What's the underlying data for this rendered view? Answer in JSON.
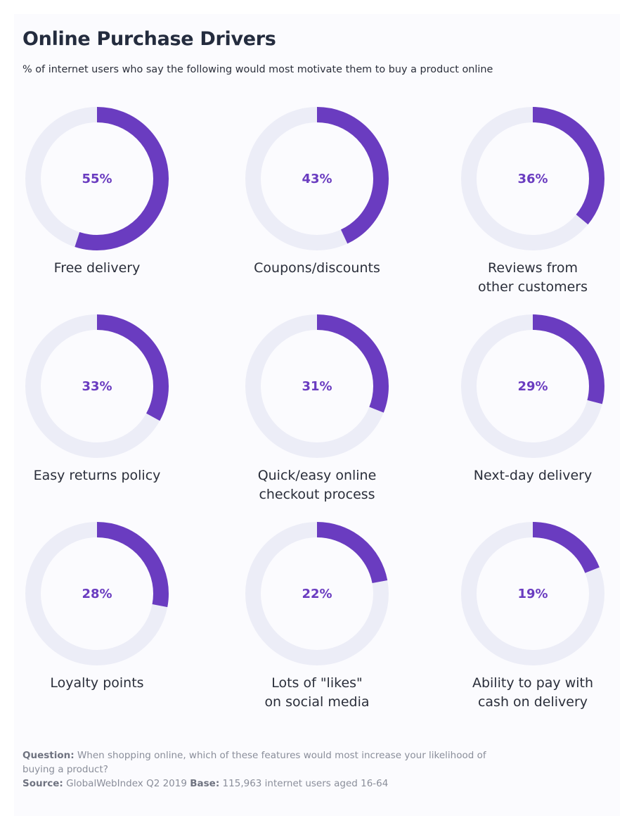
{
  "header": {
    "title": "Online Purchase Drivers",
    "subtitle": "% of internet users who say the following would most motivate them to buy a product online"
  },
  "colors": {
    "accent": "#6a3cc0",
    "track": "#ecedf7",
    "title": "#242c3e",
    "footer_text": "#8a8e9a"
  },
  "chart_data": {
    "type": "pie",
    "title": "Online Purchase Drivers",
    "subtitle": "% of internet users who say the following would most motivate them to buy a product online",
    "unit": "%",
    "items": [
      {
        "label_lines": [
          "Free delivery"
        ],
        "value": 55,
        "value_label": "55%"
      },
      {
        "label_lines": [
          "Coupons/discounts"
        ],
        "value": 43,
        "value_label": "43%"
      },
      {
        "label_lines": [
          "Reviews from",
          "other customers"
        ],
        "value": 36,
        "value_label": "36%"
      },
      {
        "label_lines": [
          "Easy returns policy"
        ],
        "value": 33,
        "value_label": "33%"
      },
      {
        "label_lines": [
          "Quick/easy online",
          "checkout process"
        ],
        "value": 31,
        "value_label": "31%"
      },
      {
        "label_lines": [
          "Next-day delivery"
        ],
        "value": 29,
        "value_label": "29%"
      },
      {
        "label_lines": [
          "Loyalty points"
        ],
        "value": 28,
        "value_label": "28%"
      },
      {
        "label_lines": [
          "Lots of \"likes\"",
          "on social media"
        ],
        "value": 22,
        "value_label": "22%"
      },
      {
        "label_lines": [
          "Ability to pay with",
          "cash on delivery"
        ],
        "value": 19,
        "value_label": "19%"
      }
    ]
  },
  "footer": {
    "question_label": "Question:",
    "question_text": "When shopping online, which of these features would most increase your likelihood of",
    "question_text_cont": "buying a product?",
    "source_label": "Source:",
    "source_text": "GlobalWebIndex Q2 2019",
    "base_label": "Base:",
    "base_text": "115,963 internet users aged 16-64"
  }
}
